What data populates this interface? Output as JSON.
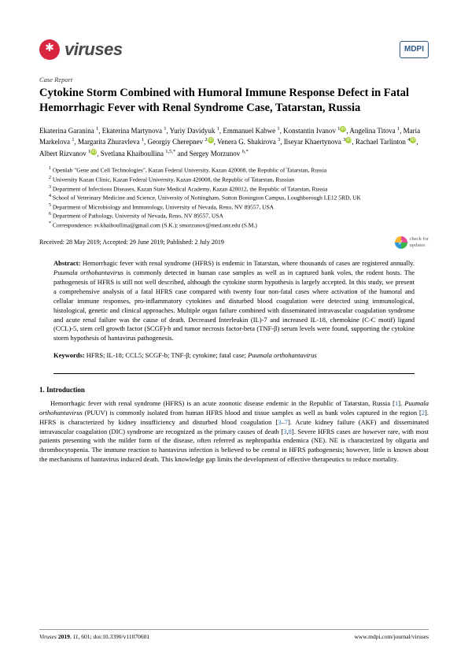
{
  "header": {
    "journal_name": "viruses",
    "publisher": "MDPI"
  },
  "article_type": "Case Report",
  "title": "Cytokine Storm Combined with Humoral Immune Response Defect in Fatal Hemorrhagic Fever with Renal Syndrome Case, Tatarstan, Russia",
  "authors_html": "Ekaterina Garanina <sup>1</sup>, Ekaterina Martynova <sup>1</sup>, Yuriy Davidyuk <sup>1</sup>, Emmanuel Kabwe <sup>1</sup>, Konstantin Ivanov <sup>1</sup><span class='orcid'>iD</span>, Angelina Titova <sup>1</sup>, Maria Markelova <sup>1</sup>, Margarita Zhuravleva <sup>1</sup>, Georgiy Cherepnev <sup>2</sup><span class='orcid'>iD</span>, Venera G. Shakirova <sup>3</sup>, Ilseyar Khaertynova <sup>3</sup><span class='orcid'>iD</span>, Rachael Tarlinton <sup>4</sup><span class='orcid'>iD</span>, Albert Rizvanov <sup>1</sup><span class='orcid'>iD</span>, Svetlana Khaiboullina <sup>1,5,*</sup> and Sergey Morzunov <sup>6,*</sup>",
  "affiliations": [
    "<sup>1</sup> Openlab \"Gene and Cell Technologies\", Kazan Federal University, Kazan 420008, the Republic of Tatarstan, Russia",
    "<sup>2</sup> University Kazan Clinic, Kazan Federal University, Kazan 420008, the Republic of Tatarstan, Russian",
    "<sup>3</sup> Department of Infectious Diseases, Kazan State Medical Academy, Kazan 420012, the Republic of Tatarstan, Russia",
    "<sup>4</sup> School of Veterinary Medicine and Science, University of Nottingham, Sutton Bonington Campus, Loughborough LE12 5RD, UK",
    "<sup>5</sup> Department of Microbiology and Immunology, University of Nevada, Reno, NV 89557, USA",
    "<sup>6</sup> Department of Pathology, University of Nevada, Reno, NV 89557, USA",
    "<sup>*</sup> Correspondence: sv.khaiboullina@gmail.com (S.K.); smorzunov@med.unr.edu (S.M.)"
  ],
  "dates": "Received: 28 May 2019; Accepted: 29 June 2019; Published: 2 July 2019",
  "check_updates": "check for updates",
  "abstract_label": "Abstract:",
  "abstract_text": "Hemorrhagic fever with renal syndrome (HFRS) is endemic in Tatarstan, where thousands of cases are registered annually. <span class='italic'>Puumala orthohantavirus</span> is commonly detected in human case samples as well as in captured bank voles, the rodent hosts. The pathogenesis of HFRS is still not well described, although the cytokine storm hypothesis is largely accepted. In this study, we present a comprehensive analysis of a fatal HFRS case compared with twenty four non-fatal cases where activation of the humoral and cellular immune responses, pro-inflammatory cytokines and disturbed blood coagulation were detected using immunological, histological, genetic and clinical approaches. Multiple organ failure combined with disseminated intravascular coagulation syndrome and acute renal failure was the cause of death. Decreased Interleukin (IL)-7 and increased IL-18, chemokine (C-C motif) ligand (CCL)-5, stem cell growth factor (SCGF)-b and tumor necrosis factor-beta (TNF-β) serum levels were found, supporting the cytokine storm hypothesis of hantavirus pathogenesis.",
  "keywords_label": "Keywords:",
  "keywords_text": "HFRS; IL-18; CCL5; SCGF-b; TNF-β; cytokine; fatal case; <span class='italic'>Puumala orthohantavirus</span>",
  "section1_heading": "1. Introduction",
  "section1_body": "Hemorrhagic fever with renal syndrome (HFRS) is an acute zoonotic disease endemic in the Republic of Tatarstan, Russia [<span class='ref'>1</span>]. <span class='italic'>Puumala orthohantavirus</span> (PUUV) is commonly isolated from human HFRS blood and tissue samples as well as bank voles captured in the region [<span class='ref'>2</span>]. HFRS is characterized by kidney insufficiency and disturbed blood coagulation [<span class='ref'>3</span>–<span class='ref'>7</span>]. Acute kidney failure (AKF) and disseminated intravascular coagulation (DIC) syndrome are recognized as the primary causes of death [<span class='ref'>3</span>,<span class='ref'>8</span>]. Severe HFRS cases are however rare, with most patients presenting with the milder form of the disease, often referred as nephropathia endemica (NE). NE is characterized by oliguria and thrombocytopenia. The immune reaction to hantavirus infection is believed to be central in HFRS pathogenesis; however, little is known about the mechanisms of hantavirus induced death. This knowledge gap limits the development of effective therapeutics to reduce mortality.",
  "footer": {
    "left": "<span class='italic'>Viruses</span> <b>2019</b>, <span class='italic'>11</span>, 601; doi:10.3390/v11070601",
    "right": "www.mdpi.com/journal/viruses"
  },
  "colors": {
    "logo_bg": "#d8253f",
    "orcid": "#a6ce39",
    "mdpi": "#2a5a8a",
    "ref": "#2a6fb5"
  }
}
